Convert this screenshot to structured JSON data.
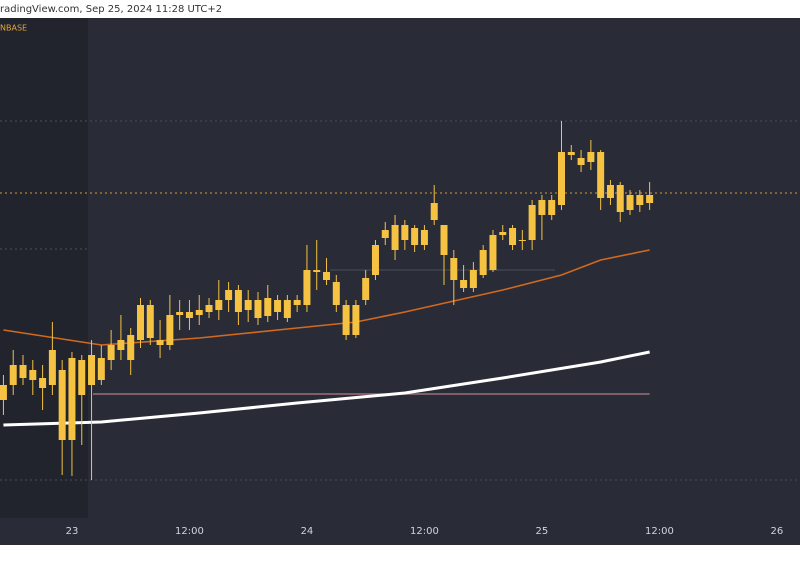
{
  "chart_data": {
    "type": "candlestick",
    "header": "radingView.com, Sep 25, 2024 11:28 UTC+2",
    "source": "NBASE",
    "color": "#f5c242",
    "x": [
      -7,
      -6,
      -5,
      -4,
      -3,
      -2,
      -1,
      0,
      1,
      2,
      3,
      4,
      5,
      6,
      7,
      8,
      9,
      10,
      11,
      12,
      13,
      14,
      15,
      16,
      17,
      18,
      19,
      20,
      21,
      22,
      23,
      24,
      25,
      26,
      27,
      28,
      29,
      30,
      31,
      32,
      33,
      34,
      35,
      36,
      37,
      38,
      39,
      40,
      41,
      42,
      43,
      44,
      45,
      46,
      47,
      48,
      49,
      50,
      51,
      52,
      53,
      54,
      55,
      56,
      57,
      58,
      59
    ],
    "open": [
      118,
      133,
      153,
      148,
      140,
      133,
      148,
      78,
      158,
      133,
      138,
      158,
      168,
      158,
      178,
      213,
      178,
      173,
      203,
      206,
      203,
      213,
      208,
      218,
      228,
      208,
      218,
      202,
      218,
      200,
      218,
      213,
      248,
      246,
      236,
      213,
      183,
      218,
      243,
      288,
      268,
      278,
      290,
      273,
      298,
      293,
      260,
      238,
      230,
      243,
      248,
      283,
      273,
      278,
      278,
      303,
      318,
      313,
      366,
      360,
      356,
      366,
      320,
      333,
      308,
      313,
      315
    ],
    "close": [
      133,
      153,
      140,
      138,
      130,
      168,
      78,
      160,
      123,
      163,
      160,
      173,
      178,
      183,
      213,
      180,
      173,
      203,
      206,
      200,
      208,
      206,
      218,
      228,
      206,
      218,
      200,
      220,
      206,
      218,
      213,
      248,
      246,
      238,
      213,
      183,
      213,
      240,
      273,
      280,
      293,
      293,
      273,
      288,
      315,
      263,
      238,
      230,
      248,
      268,
      283,
      286,
      290,
      278,
      313,
      318,
      303,
      366,
      363,
      353,
      366,
      320,
      333,
      306,
      323,
      323,
      323
    ],
    "high": [
      143,
      168,
      163,
      158,
      153,
      196,
      158,
      166,
      163,
      178,
      173,
      188,
      203,
      190,
      220,
      218,
      198,
      223,
      218,
      218,
      223,
      220,
      238,
      236,
      233,
      228,
      226,
      233,
      223,
      223,
      223,
      273,
      278,
      260,
      243,
      218,
      218,
      248,
      278,
      296,
      303,
      298,
      293,
      293,
      333,
      293,
      268,
      253,
      256,
      273,
      288,
      293,
      293,
      288,
      318,
      323,
      323,
      397,
      373,
      368,
      378,
      368,
      338,
      336,
      328,
      328,
      336
    ],
    "low": [
      103,
      123,
      133,
      123,
      108,
      123,
      43,
      42,
      73,
      38,
      133,
      148,
      158,
      143,
      170,
      173,
      160,
      168,
      188,
      188,
      193,
      200,
      198,
      206,
      193,
      196,
      193,
      196,
      198,
      196,
      206,
      206,
      228,
      233,
      206,
      178,
      180,
      213,
      238,
      273,
      258,
      268,
      266,
      268,
      293,
      233,
      213,
      226,
      226,
      240,
      246,
      278,
      268,
      268,
      268,
      278,
      298,
      308,
      358,
      346,
      348,
      308,
      313,
      296,
      303,
      306,
      308
    ],
    "ma_fast": {
      "color": "#d2691e",
      "x": [
        -7,
        3,
        13,
        23,
        29,
        34,
        44,
        50,
        54,
        59
      ],
      "values": [
        188,
        173,
        180,
        190,
        196,
        206,
        228,
        243,
        258,
        268
      ]
    },
    "ma_slow": {
      "color": "#ffffff",
      "x": [
        -7,
        3,
        13,
        23,
        34,
        44,
        54,
        59
      ],
      "values": [
        93,
        96,
        105,
        115,
        125,
        140,
        156,
        166
      ]
    },
    "levels": [
      397,
      325,
      269,
      38,
      124,
      248
    ],
    "xlim": [
      -7.35,
      74.36
    ],
    "ylim": [
      0,
      500
    ],
    "xticks": [
      {
        "value": 0,
        "label": "23"
      },
      {
        "value": 12,
        "label": "12:00"
      },
      {
        "value": 24,
        "label": "24"
      },
      {
        "value": 36,
        "label": "12:00"
      },
      {
        "value": 48,
        "label": "25"
      },
      {
        "value": 60,
        "label": "12:00"
      },
      {
        "value": 72,
        "label": "26"
      }
    ]
  }
}
